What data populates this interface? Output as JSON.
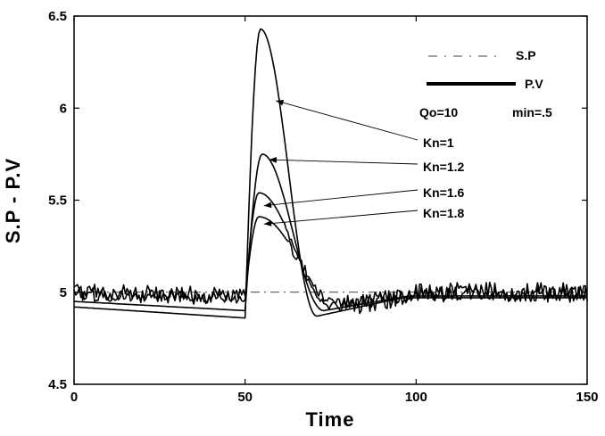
{
  "chart_data": {
    "type": "line",
    "title": "",
    "xlabel": "Time",
    "ylabel": "S.P - P.V",
    "xlim": [
      0,
      150
    ],
    "ylim": [
      4.5,
      6.5
    ],
    "x_ticks": [
      0,
      50,
      100,
      150
    ],
    "y_ticks": [
      4.5,
      5,
      5.5,
      6,
      6.5
    ],
    "x_tick_labels": [
      "0",
      "50",
      "100",
      "150"
    ],
    "y_tick_labels": [
      "4.5",
      "5",
      "5.5",
      "6",
      "6.5"
    ],
    "grid": false,
    "legend_position": "top-right",
    "legend": [
      {
        "label": "S.P",
        "style": "dash-dot"
      },
      {
        "label": "P.V",
        "style": "thick-solid"
      }
    ],
    "annotations": {
      "qo": "Qo=10",
      "min": "min=.5"
    },
    "setpoint": {
      "name": "S.P",
      "value": 5.0
    },
    "series": [
      {
        "name": "Kn=1",
        "peak": 6.43,
        "peak_x": 54.5,
        "pre_start": 4.92,
        "pre_end": 4.86,
        "undershoot": 4.87,
        "undershoot_x": 71,
        "noise": 0.0,
        "settle": 4.97
      },
      {
        "name": "Kn=1.2",
        "peak": 5.75,
        "peak_x": 55,
        "pre_start": 4.95,
        "pre_end": 4.9,
        "undershoot": 4.9,
        "undershoot_x": 73,
        "noise": 0.0,
        "settle": 4.98
      },
      {
        "name": "Kn=1.6",
        "peak": 5.54,
        "peak_x": 54,
        "pre_start": 4.99,
        "pre_end": 4.96,
        "undershoot": 4.93,
        "undershoot_x": 75,
        "noise": 0.045,
        "settle": 4.99
      },
      {
        "name": "Kn=1.8",
        "peak": 5.41,
        "peak_x": 54,
        "pre_start": 5.0,
        "pre_end": 4.98,
        "undershoot": 4.92,
        "undershoot_x": 78,
        "noise": 0.06,
        "settle": 5.0
      }
    ],
    "callout_labels": [
      "Kn=1",
      "Kn=1.2",
      "Kn=1.6",
      "Kn=1.8"
    ]
  }
}
